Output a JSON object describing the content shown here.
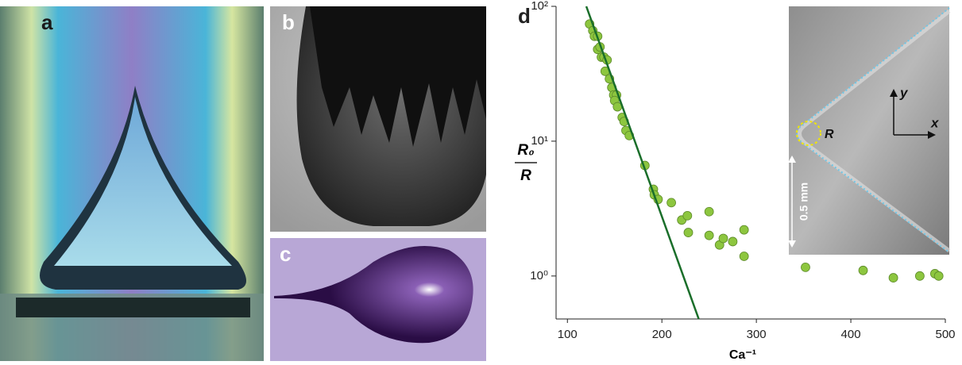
{
  "panels": {
    "a": "a",
    "b": "b",
    "c": "c"
  },
  "chart_data": {
    "type": "scatter",
    "panel_label": "d",
    "x_label": "Ca⁻¹",
    "y_label": {
      "numerator": "R₀",
      "denominator": "R"
    },
    "log_y": true,
    "xlim": [
      88,
      500
    ],
    "ylim": [
      0.48,
      100
    ],
    "xticks": [
      100,
      200,
      300,
      400,
      500
    ],
    "yticks": [
      {
        "value": 1,
        "label": "10⁰"
      },
      {
        "value": 10,
        "label": "10¹"
      },
      {
        "value": 100,
        "label": "10²"
      }
    ],
    "series": [
      {
        "color": "#8dc63f",
        "x": [
          123.5,
          126.9,
          128.6,
          132,
          132,
          134.5,
          136,
          138.7,
          142,
          140,
          144.5,
          147,
          149,
          152,
          150,
          153,
          158,
          160,
          162,
          165.5,
          182,
          191,
          192,
          196,
          210,
          221,
          227,
          228,
          250,
          250,
          261,
          265,
          275,
          287,
          287,
          352,
          413,
          445,
          473,
          489,
          493
        ],
        "values": [
          74,
          66,
          60,
          60,
          48,
          50,
          42,
          42,
          40,
          33,
          29,
          25,
          22,
          22,
          20,
          18,
          15,
          14,
          12,
          11,
          6.6,
          4.4,
          4.0,
          3.7,
          3.5,
          2.6,
          2.8,
          2.1,
          3.0,
          2.0,
          1.7,
          1.9,
          1.8,
          2.2,
          1.4,
          1.16,
          1.1,
          0.97,
          1.0,
          1.04,
          1.0
        ]
      },
      {
        "type": "line",
        "color": "#1a6e2a",
        "x": [
          120,
          239
        ],
        "values": [
          100,
          0.48
        ]
      }
    ],
    "inset": {
      "x_label": "x",
      "y_label": "y",
      "radius_label": "R",
      "scale_bar": "0.5 mm"
    }
  }
}
